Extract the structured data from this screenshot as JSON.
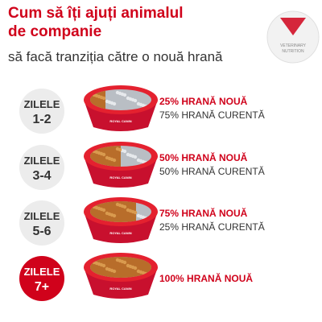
{
  "header": {
    "title_line1": "Cum să îți ajuți animalul",
    "title_line2": "de companie",
    "subtitle": "să facă tranziția către o nouă hrană",
    "badge": {
      "line1": "VETERINARY",
      "line2": "NUTRITION"
    }
  },
  "bowl_label": "ROYAL CANIN",
  "steps": [
    {
      "days_label": "ZILELE",
      "days": "1-2",
      "new_food": "25% HRANĂ NOUĂ",
      "current_food": "75% HRANĂ CURENTĂ"
    },
    {
      "days_label": "ZILELE",
      "days": "3-4",
      "new_food": "50% HRANĂ NOUĂ",
      "current_food": "50% HRANĂ CURENTĂ"
    },
    {
      "days_label": "ZILELE",
      "days": "5-6",
      "new_food": "75% HRANĂ NOUĂ",
      "current_food": "25% HRANĂ CURENTĂ"
    },
    {
      "days_label": "ZILELE",
      "days": "7+",
      "new_food": "100% HRANĂ NOUĂ"
    }
  ]
}
